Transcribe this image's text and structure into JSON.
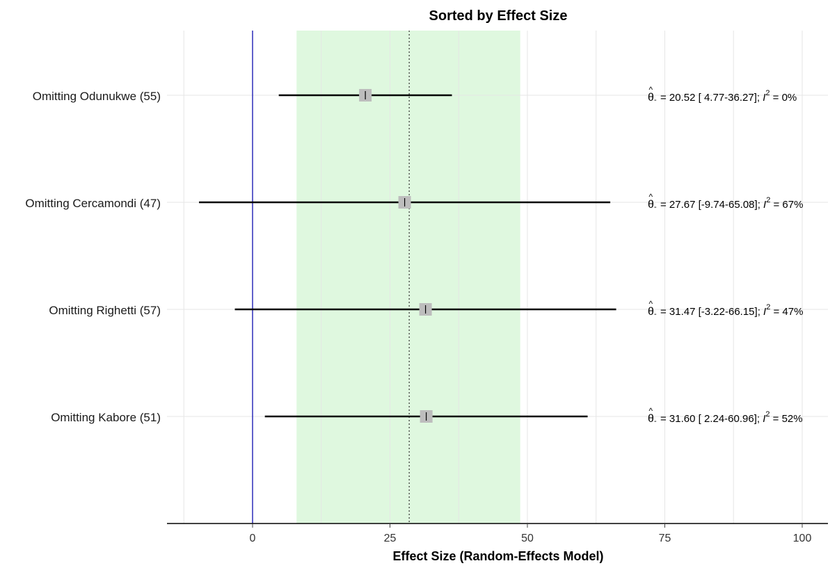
{
  "chart_data": {
    "type": "forest",
    "title": "Sorted by Effect Size",
    "xlabel": "Effect Size (Random-Effects Model)",
    "xlim": [
      -15,
      105
    ],
    "x_ticks": [
      0,
      25,
      50,
      75,
      100
    ],
    "x_tick_labels": [
      "0",
      "25",
      "50",
      "75",
      "100"
    ],
    "grid": true,
    "reference_line": 0,
    "pooled_estimate": 28.5,
    "pooled_ci": [
      8,
      48.7
    ],
    "colors": {
      "band": "#dff8df",
      "reference": "#2b2bb8",
      "marker": "#bdbdbd",
      "whisker": "#000000",
      "grid": "#e6e6e6"
    },
    "rows": [
      {
        "label": "Omitting Odunukwe (55)",
        "estimate": 20.52,
        "ci_low": 4.77,
        "ci_high": 36.27,
        "i2_percent": 0,
        "annotation_value": "= 20.52 [ 4.77-36.27]; ",
        "annotation_i2": " =  0%"
      },
      {
        "label": "Omitting Cercamondi (47)",
        "estimate": 27.67,
        "ci_low": -9.74,
        "ci_high": 65.08,
        "i2_percent": 67,
        "annotation_value": "= 27.67 [-9.74-65.08]; ",
        "annotation_i2": " = 67%"
      },
      {
        "label": "Omitting Righetti (57)",
        "estimate": 31.47,
        "ci_low": -3.22,
        "ci_high": 66.15,
        "i2_percent": 47,
        "annotation_value": "= 31.47 [-3.22-66.15]; ",
        "annotation_i2": " = 47%"
      },
      {
        "label": "Omitting Kabore (51)",
        "estimate": 31.6,
        "ci_low": 2.24,
        "ci_high": 60.96,
        "i2_percent": 52,
        "annotation_value": "= 31.60 [ 2.24-60.96]; ",
        "annotation_i2": " = 52%"
      }
    ]
  }
}
